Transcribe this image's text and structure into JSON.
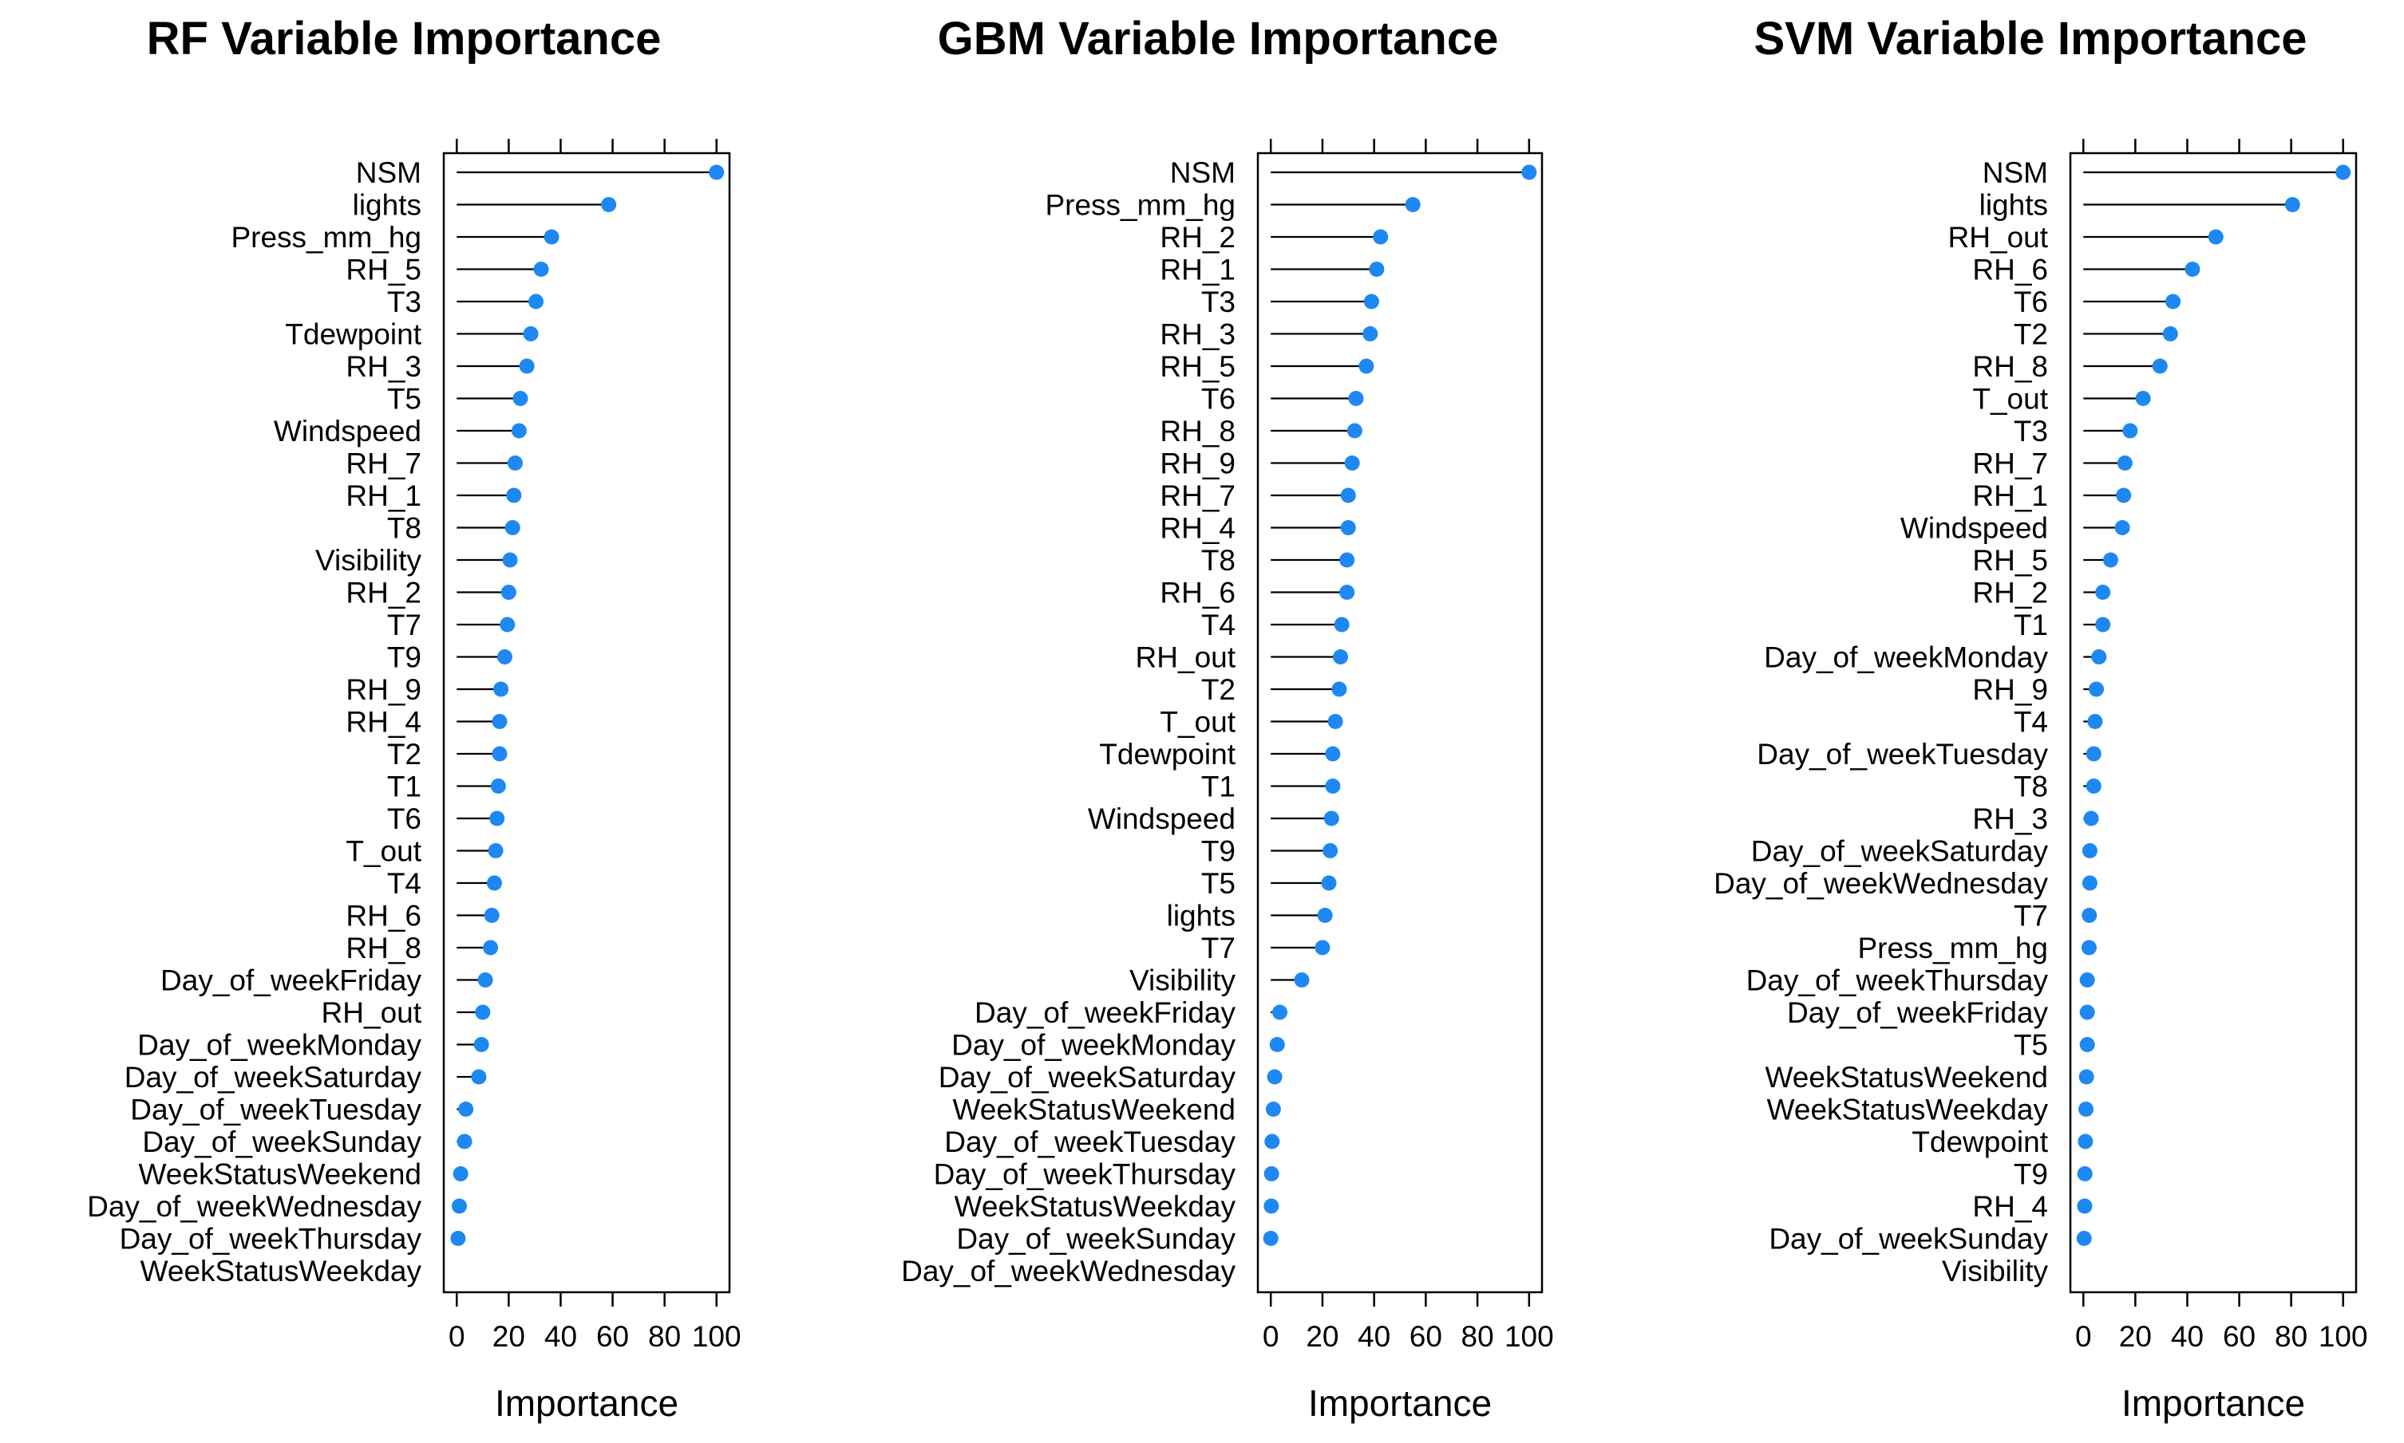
{
  "chart_data": [
    {
      "type": "dot",
      "title": "RF Variable Importance",
      "xlabel": "Importance",
      "xlim": [
        -5,
        105
      ],
      "xticks": [
        0,
        20,
        40,
        60,
        80,
        100
      ],
      "point_color": "#1e88f2",
      "categories": [
        "NSM",
        "lights",
        "Press_mm_hg",
        "RH_5",
        "T3",
        "Tdewpoint",
        "RH_3",
        "T5",
        "Windspeed",
        "RH_7",
        "RH_1",
        "T8",
        "Visibility",
        "RH_2",
        "T7",
        "T9",
        "RH_9",
        "RH_4",
        "T2",
        "T1",
        "T6",
        "T_out",
        "T4",
        "RH_6",
        "RH_8",
        "Day_of_weekFriday",
        "RH_out",
        "Day_of_weekMonday",
        "Day_of_weekSaturday",
        "Day_of_weekTuesday",
        "Day_of_weekSunday",
        "WeekStatusWeekend",
        "Day_of_weekWednesday",
        "Day_of_weekThursday",
        "WeekStatusWeekday"
      ],
      "values": [
        100,
        58.5,
        36.5,
        32.5,
        30.5,
        28.5,
        27,
        24.5,
        24,
        22.5,
        22,
        21.5,
        20.5,
        20,
        19.5,
        18.5,
        17,
        16.5,
        16.5,
        16,
        15.5,
        15,
        14.5,
        13.5,
        13,
        11,
        10,
        9.5,
        8.5,
        3.5,
        3,
        1.5,
        1,
        0.5,
        0
      ]
    },
    {
      "type": "dot",
      "title": "GBM Variable Importance",
      "xlabel": "Importance",
      "xlim": [
        -5,
        105
      ],
      "xticks": [
        0,
        20,
        40,
        60,
        80,
        100
      ],
      "point_color": "#1e88f2",
      "categories": [
        "NSM",
        "Press_mm_hg",
        "RH_2",
        "RH_1",
        "T3",
        "RH_3",
        "RH_5",
        "T6",
        "RH_8",
        "RH_9",
        "RH_7",
        "RH_4",
        "T8",
        "RH_6",
        "T4",
        "RH_out",
        "T2",
        "T_out",
        "Tdewpoint",
        "T1",
        "Windspeed",
        "T9",
        "T5",
        "lights",
        "T7",
        "Visibility",
        "Day_of_weekFriday",
        "Day_of_weekMonday",
        "Day_of_weekSaturday",
        "WeekStatusWeekend",
        "Day_of_weekTuesday",
        "Day_of_weekThursday",
        "WeekStatusWeekday",
        "Day_of_weekSunday",
        "Day_of_weekWednesday"
      ],
      "values": [
        100,
        55,
        42.5,
        41,
        39,
        38.5,
        37,
        33,
        32.5,
        31.5,
        30,
        30,
        29.5,
        29.5,
        27.5,
        27,
        26.5,
        25,
        24,
        24,
        23.5,
        23,
        22.5,
        21,
        20,
        12,
        3.5,
        2.5,
        1.5,
        1,
        0.5,
        0.3,
        0.2,
        0,
        0
      ]
    },
    {
      "type": "dot",
      "title": "SVM Variable Importance",
      "xlabel": "Importance",
      "xlim": [
        -5,
        105
      ],
      "xticks": [
        0,
        20,
        40,
        60,
        80,
        100
      ],
      "point_color": "#1e88f2",
      "categories": [
        "NSM",
        "lights",
        "RH_out",
        "RH_6",
        "T6",
        "T2",
        "RH_8",
        "T_out",
        "T3",
        "RH_7",
        "RH_1",
        "Windspeed",
        "RH_5",
        "RH_2",
        "T1",
        "Day_of_weekMonday",
        "RH_9",
        "T4",
        "Day_of_weekTuesday",
        "T8",
        "RH_3",
        "Day_of_weekSaturday",
        "Day_of_weekWednesday",
        "T7",
        "Press_mm_hg",
        "Day_of_weekThursday",
        "Day_of_weekFriday",
        "T5",
        "WeekStatusWeekend",
        "WeekStatusWeekday",
        "Tdewpoint",
        "T9",
        "RH_4",
        "Day_of_weekSunday",
        "Visibility"
      ],
      "values": [
        100,
        80.5,
        51,
        42,
        34.5,
        33.5,
        29.5,
        23,
        18,
        16,
        15.5,
        15,
        10.5,
        7.5,
        7.5,
        6,
        5,
        4.5,
        4,
        4,
        3,
        2.5,
        2.5,
        2.3,
        2.2,
        1.5,
        1.5,
        1.5,
        1.2,
        1,
        0.8,
        0.6,
        0.5,
        0.3,
        0
      ]
    }
  ]
}
